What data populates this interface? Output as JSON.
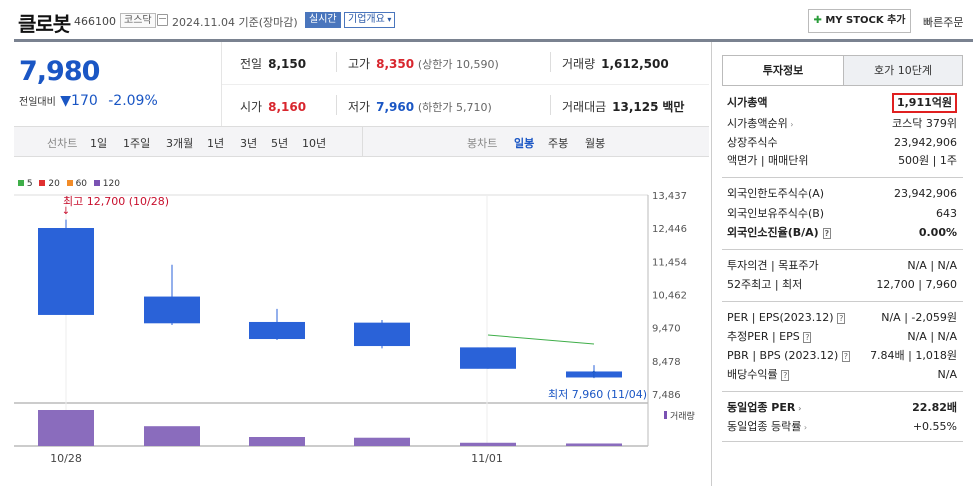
{
  "header": {
    "name": "클로봇",
    "code": "466100",
    "market_badge": "코스닥",
    "date_info": "2024.11.04 기준(장마감)",
    "realtime_btn": "실시간",
    "corp_info_btn": "기업개요",
    "my_stock_btn": "MY STOCK 추가",
    "quick_order": "빠른주문"
  },
  "price": {
    "current": "7,980",
    "change_label": "전일대비",
    "change_value": "170",
    "change_pct": "-2.09%"
  },
  "quote": {
    "prev_label": "전일",
    "prev_value": "8,150",
    "high_label": "고가",
    "high_value": "8,350",
    "upper_limit": "(상한가 10,590)",
    "volume_label": "거래량",
    "volume_value": "1,612,500",
    "open_label": "시가",
    "open_value": "8,160",
    "low_label": "저가",
    "low_value": "7,960",
    "lower_limit": "(하한가 5,710)",
    "amount_label": "거래대금",
    "amount_value": "13,125",
    "amount_unit": "백만"
  },
  "chart_tabs": {
    "line_label": "선차트",
    "line_periods": [
      "1일",
      "1주일",
      "3개월",
      "1년",
      "3년",
      "5년",
      "10년"
    ],
    "candle_label": "봉차트",
    "candle_periods": [
      "일봉",
      "주봉",
      "월봉"
    ]
  },
  "chart_data": {
    "type": "candlestick",
    "legend": [
      "5",
      "20",
      "60",
      "120"
    ],
    "legend_colors": [
      "#3fae49",
      "#e03030",
      "#f28c28",
      "#7a52b3"
    ],
    "y_ticks": [
      "13,437",
      "12,446",
      "11,454",
      "10,462",
      "9,470",
      "8,478",
      "7,486"
    ],
    "x_labels": [
      "10/28",
      "11/01"
    ],
    "candles": [
      {
        "open": 12450,
        "close": 9850,
        "high": 12700,
        "low": 9850
      },
      {
        "open": 10400,
        "close": 9600,
        "high": 11350,
        "low": 9550
      },
      {
        "open": 9640,
        "close": 9130,
        "high": 10030,
        "low": 9100
      },
      {
        "open": 9620,
        "close": 8920,
        "high": 9700,
        "low": 8850
      },
      {
        "open": 8880,
        "close": 8240,
        "high": 8880,
        "low": 8240
      },
      {
        "open": 8160,
        "close": 7980,
        "high": 8350,
        "low": 7960
      }
    ],
    "ma5": [
      null,
      null,
      null,
      null,
      9250,
      8980
    ],
    "volumes": [
      1.0,
      0.55,
      0.25,
      0.23,
      0.09,
      0.07
    ],
    "max_annotation": "최고 12,700 (10/28)",
    "min_annotation": "최저 7,960 (11/04)",
    "volume_label": "거래량"
  },
  "invest_tabs": {
    "tab1": "투자정보",
    "tab2": "호가 10단계"
  },
  "invest": {
    "rows1": [
      {
        "label": "시가총액",
        "value": "1,911억원"
      },
      {
        "label": "시가총액순위",
        "value": "코스닥 379위"
      },
      {
        "label": "상장주식수",
        "value": "23,942,906"
      },
      {
        "label": "액면가 | 매매단위",
        "value": "500원 | 1주"
      }
    ],
    "rows2": [
      {
        "label": "외국인한도주식수(A)",
        "value": "23,942,906"
      },
      {
        "label": "외국인보유주식수(B)",
        "value": "643"
      },
      {
        "label": "외국인소진율(B/A)",
        "value": "0.00%"
      }
    ],
    "rows3": [
      {
        "label": "투자의견 | 목표주가",
        "value": "N/A | N/A"
      },
      {
        "label": "52주최고 | 최저",
        "value": "12,700 | 7,960"
      }
    ],
    "rows4": [
      {
        "label": "PER | EPS(2023.12)",
        "value": "N/A | -2,059원"
      },
      {
        "label": "추정PER | EPS",
        "value": "N/A | N/A"
      },
      {
        "label": "PBR | BPS (2023.12)",
        "value": "7.84배 | 1,018원"
      },
      {
        "label": "배당수익률",
        "value": "N/A"
      }
    ],
    "rows5": [
      {
        "label": "동일업종 PER",
        "value": "22.82배"
      },
      {
        "label": "동일업종 등락률",
        "value": "+0.55%"
      }
    ]
  }
}
